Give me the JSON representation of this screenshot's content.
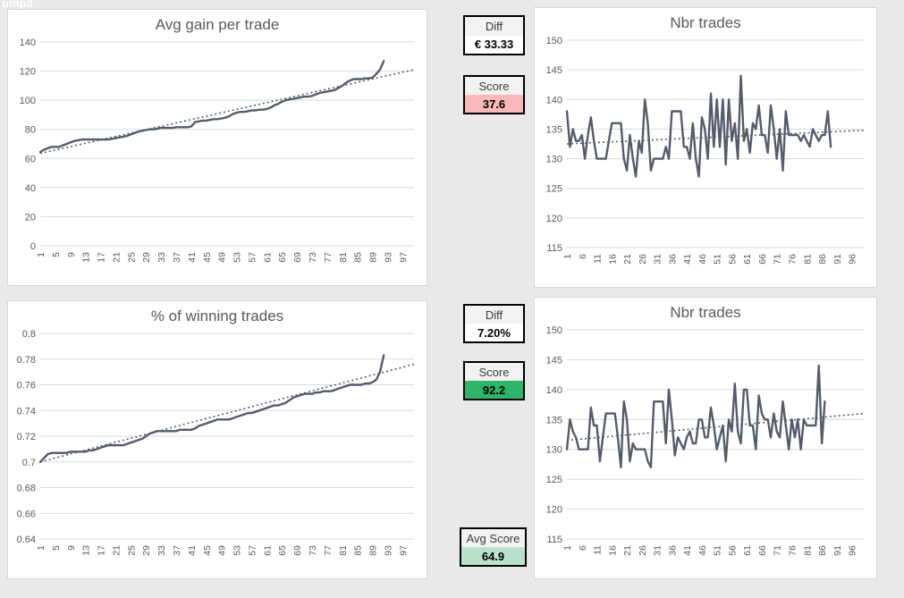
{
  "page": {
    "corner_text": "ump3"
  },
  "colors": {
    "line": "#545b6b",
    "trend": "#545b6b",
    "grid": "#d9d9d9",
    "tick": "#595959",
    "title": "#595959",
    "score_bad_bg": "#f7b9b9",
    "score_good_bg": "#2eb56a",
    "avg_score_bg": "#b9e2cc",
    "diff_bg": "#ffffff"
  },
  "panels": {
    "diff_gain": {
      "label": "Diff",
      "value": "€ 33.33",
      "value_bg": "#ffffff"
    },
    "score_gain": {
      "label": "Score",
      "value": "37.6",
      "value_bg": "#f7b9b9"
    },
    "diff_win": {
      "label": "Diff",
      "value": "7.20%",
      "value_bg": "#ffffff"
    },
    "score_win": {
      "label": "Score",
      "value": "92.2",
      "value_bg": "#2eb56a"
    },
    "avg_score": {
      "label": "Avg Score",
      "value": "64.9",
      "value_bg": "#b9e2cc"
    }
  },
  "chart_data": [
    {
      "type": "line",
      "title": "Avg gain per trade",
      "ylim": [
        0,
        140
      ],
      "x_max": 100,
      "grid": true,
      "legend": false,
      "y_ticks": [
        {
          "v": 140,
          "label": "140"
        },
        {
          "v": 120,
          "label": "120"
        },
        {
          "v": 100,
          "label": "100"
        },
        {
          "v": 80,
          "label": "80"
        },
        {
          "v": 60,
          "label": "60"
        },
        {
          "v": 40,
          "label": "40"
        },
        {
          "v": 20,
          "label": "20"
        },
        {
          "v": 0,
          "label": "0"
        }
      ],
      "x_ticks": [
        1,
        5,
        9,
        13,
        17,
        21,
        25,
        29,
        33,
        37,
        41,
        45,
        49,
        53,
        57,
        61,
        65,
        69,
        73,
        77,
        81,
        85,
        89,
        93,
        97
      ],
      "values": [
        64.5,
        66,
        67,
        68,
        68,
        68,
        69,
        70,
        71,
        72,
        72.5,
        73,
        73,
        73,
        73,
        73,
        73,
        73,
        73,
        73.5,
        74,
        74.5,
        75,
        75.5,
        76.5,
        77.5,
        78.5,
        79,
        79.5,
        80,
        80,
        80.5,
        81,
        81,
        81,
        81,
        81.5,
        81.5,
        81.5,
        81.5,
        82,
        85,
        85.5,
        86,
        86,
        86.5,
        87,
        87,
        87.5,
        88,
        89,
        90.5,
        91.5,
        92,
        92,
        92.5,
        93,
        93,
        93.5,
        93.5,
        94,
        95,
        96.5,
        97.5,
        99,
        100,
        100.5,
        101,
        101.5,
        102,
        102.5,
        102.5,
        103,
        104,
        105,
        105.5,
        106,
        106.5,
        107,
        108.5,
        110,
        112,
        113.5,
        114.5,
        114.5,
        114.5,
        115,
        115,
        115.5,
        118,
        121,
        127
      ],
      "trend": {
        "x1": 1,
        "v1": 63.5,
        "x2": 100,
        "v2": 121
      }
    },
    {
      "type": "line",
      "title": "Nbr trades",
      "ylim": [
        115,
        150
      ],
      "x_max": 100,
      "grid": true,
      "legend": false,
      "y_ticks": [
        {
          "v": 150,
          "label": "150"
        },
        {
          "v": 145,
          "label": "145"
        },
        {
          "v": 140,
          "label": "140"
        },
        {
          "v": 135,
          "label": "135"
        },
        {
          "v": 130,
          "label": "130"
        },
        {
          "v": 125,
          "label": "125"
        },
        {
          "v": 120,
          "label": "120"
        },
        {
          "v": 115,
          "label": "115"
        }
      ],
      "x_ticks": [
        1,
        6,
        11,
        16,
        21,
        26,
        31,
        36,
        41,
        46,
        51,
        56,
        61,
        66,
        71,
        76,
        81,
        86,
        91,
        96
      ],
      "values": [
        138,
        132,
        135,
        133,
        133,
        134,
        130,
        134,
        137,
        133,
        130,
        130,
        130,
        130,
        133,
        136,
        136,
        136,
        136,
        130,
        128,
        134,
        130,
        127,
        133,
        131,
        140,
        136,
        128,
        130,
        130,
        130,
        130,
        132,
        130,
        138,
        138,
        138,
        138,
        132,
        132,
        130,
        136,
        130,
        127,
        137,
        135,
        130,
        141,
        132,
        140,
        132,
        140,
        129,
        140,
        133,
        136,
        130,
        144,
        133,
        135,
        131,
        136,
        135,
        139,
        134,
        134,
        131,
        139,
        135,
        130,
        135,
        128,
        138,
        134,
        134,
        134,
        134,
        133,
        134,
        133,
        132,
        135,
        134,
        133,
        134,
        134,
        138,
        132
      ],
      "trend": {
        "x1": 1,
        "v1": 132.5,
        "x2": 100,
        "v2": 134.8
      }
    },
    {
      "type": "line",
      "title": "% of winning trades",
      "ylim": [
        0.64,
        0.8
      ],
      "x_max": 100,
      "grid": true,
      "legend": false,
      "y_ticks": [
        {
          "v": 0.8,
          "label": "0.8"
        },
        {
          "v": 0.78,
          "label": "0.78"
        },
        {
          "v": 0.76,
          "label": "0.76"
        },
        {
          "v": 0.74,
          "label": "0.74"
        },
        {
          "v": 0.72,
          "label": "0.72"
        },
        {
          "v": 0.7,
          "label": "0.7"
        },
        {
          "v": 0.68,
          "label": "0.68"
        },
        {
          "v": 0.66,
          "label": "0.66"
        },
        {
          "v": 0.64,
          "label": "0.64"
        }
      ],
      "x_ticks": [
        1,
        5,
        9,
        13,
        17,
        21,
        25,
        29,
        33,
        37,
        41,
        45,
        49,
        53,
        57,
        61,
        65,
        69,
        73,
        77,
        81,
        85,
        89,
        93,
        97
      ],
      "values": [
        0.7,
        0.703,
        0.706,
        0.707,
        0.707,
        0.707,
        0.707,
        0.707,
        0.708,
        0.708,
        0.708,
        0.708,
        0.708,
        0.709,
        0.709,
        0.71,
        0.711,
        0.712,
        0.713,
        0.713,
        0.713,
        0.713,
        0.713,
        0.714,
        0.715,
        0.716,
        0.717,
        0.718,
        0.72,
        0.722,
        0.723,
        0.724,
        0.724,
        0.724,
        0.724,
        0.724,
        0.724,
        0.725,
        0.725,
        0.725,
        0.725,
        0.726,
        0.728,
        0.729,
        0.73,
        0.731,
        0.732,
        0.733,
        0.733,
        0.733,
        0.733,
        0.734,
        0.735,
        0.736,
        0.737,
        0.738,
        0.738,
        0.739,
        0.74,
        0.741,
        0.742,
        0.743,
        0.744,
        0.744,
        0.745,
        0.746,
        0.748,
        0.75,
        0.751,
        0.752,
        0.753,
        0.753,
        0.753,
        0.754,
        0.754,
        0.755,
        0.755,
        0.755,
        0.756,
        0.757,
        0.758,
        0.759,
        0.76,
        0.76,
        0.76,
        0.76,
        0.761,
        0.761,
        0.762,
        0.764,
        0.77,
        0.783
      ],
      "trend": {
        "x1": 1,
        "v1": 0.7,
        "x2": 100,
        "v2": 0.776
      }
    },
    {
      "type": "line",
      "title": "Nbr trades",
      "ylim": [
        115,
        150
      ],
      "x_max": 100,
      "grid": true,
      "legend": false,
      "y_ticks": [
        {
          "v": 150,
          "label": "150"
        },
        {
          "v": 145,
          "label": "145"
        },
        {
          "v": 140,
          "label": "140"
        },
        {
          "v": 135,
          "label": "135"
        },
        {
          "v": 130,
          "label": "130"
        },
        {
          "v": 125,
          "label": "125"
        },
        {
          "v": 120,
          "label": "120"
        },
        {
          "v": 115,
          "label": "115"
        }
      ],
      "x_ticks": [
        1,
        6,
        11,
        16,
        21,
        26,
        31,
        36,
        41,
        46,
        51,
        56,
        61,
        66,
        71,
        76,
        81,
        86,
        91,
        96
      ],
      "values": [
        130,
        135,
        133,
        132,
        130,
        130,
        130,
        130,
        137,
        134,
        134,
        128,
        132,
        136,
        136,
        136,
        136,
        132,
        127,
        138,
        135,
        128,
        131,
        130,
        130,
        130,
        130,
        128,
        127,
        138,
        138,
        138,
        138,
        131,
        140,
        135,
        129,
        132,
        131,
        130,
        132,
        133,
        131,
        131,
        135,
        135,
        132,
        132,
        137,
        134,
        130,
        132,
        134,
        128,
        135,
        133,
        141,
        133,
        131,
        140,
        140,
        134,
        134,
        130,
        139,
        136,
        135,
        135,
        132,
        136,
        133,
        132,
        138,
        134,
        130,
        135,
        132,
        135,
        130,
        135,
        134,
        134,
        134,
        134,
        144,
        131,
        138
      ],
      "trend": {
        "x1": 1,
        "v1": 131.5,
        "x2": 100,
        "v2": 136.0
      }
    }
  ]
}
